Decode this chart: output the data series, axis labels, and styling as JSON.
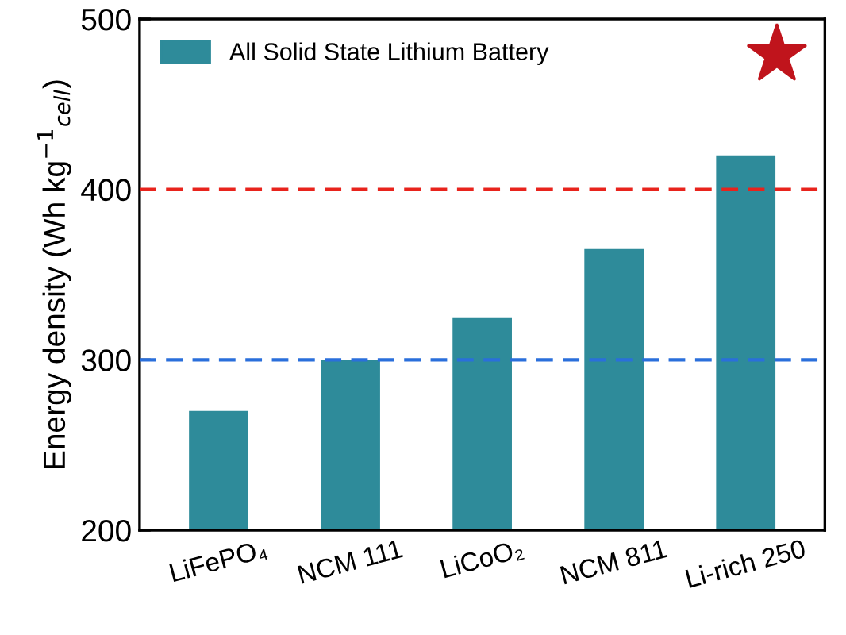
{
  "chart_data": {
    "type": "bar",
    "ylabel": "Energy density (Wh kg$^{−1}$$_{cell}$)",
    "categories": [
      "LiFePO₄",
      "NCM 111",
      "LiCoO₂",
      "NCM 811",
      "Li-rich 250"
    ],
    "series": [
      {
        "name": "All Solid State Lithium Battery",
        "color": "#2e8b9a",
        "values": [
          270,
          300,
          325,
          365,
          420
        ]
      }
    ],
    "ylim": [
      200,
      500
    ],
    "yticks": [
      200,
      300,
      400,
      500
    ],
    "ref_lines": [
      {
        "axis": "y",
        "value": 400,
        "color": "#e8231c",
        "line_style": "dashed"
      },
      {
        "axis": "y",
        "value": 300,
        "color": "#2a6fdb",
        "line_style": "dashed"
      }
    ],
    "legend": "top left",
    "grid": false
  }
}
